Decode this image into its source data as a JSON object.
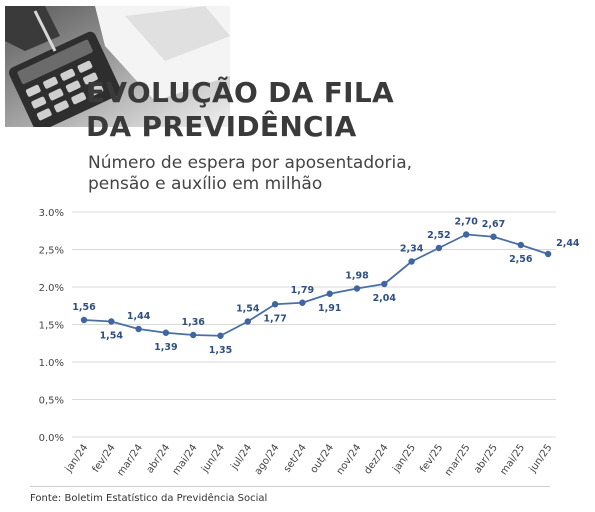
{
  "header": {
    "title_line1": "EVOLUÇÃO DA FILA",
    "title_line2": "DA PREVIDÊNCIA",
    "subtitle_line1": "Número de espera por aposentadoria,",
    "subtitle_line2": "pensão e auxílio em milhão"
  },
  "footer": {
    "source": "Fonte: Boletim Estatístico da Previdência Social"
  },
  "colors": {
    "line": "#4a6fa5",
    "point": "#3f66a0",
    "label": "#2f4f80",
    "axis_text": "#444444",
    "grid": "#d9d9d9",
    "title": "#3a3a3a"
  },
  "chart_data": {
    "type": "line",
    "title": "EVOLUÇÃO DA FILA DA PREVIDÊNCIA",
    "subtitle": "Número de espera por aposentadoria, pensão e auxílio em milhão",
    "categories": [
      "jan/24",
      "fev/24",
      "mar/24",
      "abr/24",
      "mai/24",
      "jun/24",
      "jul/24",
      "ago/24",
      "set/24",
      "out/24",
      "nov/24",
      "dez/24",
      "jan/25",
      "fev/25",
      "mar/25",
      "abr/25",
      "mai/25",
      "jun/25"
    ],
    "series": [
      {
        "values": [
          1.56,
          1.54,
          1.44,
          1.39,
          1.36,
          1.35,
          1.54,
          1.77,
          1.79,
          1.91,
          1.98,
          2.04,
          2.34,
          2.52,
          2.7,
          2.67,
          2.56,
          2.44
        ],
        "data_labels": [
          "1,56",
          "1,54",
          "1,44",
          "1,39",
          "1,36",
          "1,35",
          "1,54",
          "1,77",
          "1,79",
          "1,91",
          "1,98",
          "2,04",
          "2,34",
          "2,52",
          "2,70",
          "2,67",
          "2,56",
          "2,44"
        ],
        "label_position": [
          "above",
          "below",
          "above",
          "below",
          "above",
          "below",
          "above",
          "below",
          "above",
          "below",
          "above",
          "below",
          "above",
          "above",
          "above",
          "above",
          "below",
          "right"
        ]
      }
    ],
    "yticks": [
      {
        "value": 0.0,
        "label": "0.0%"
      },
      {
        "value": 0.5,
        "label": "0,5%"
      },
      {
        "value": 1.0,
        "label": "1.0%"
      },
      {
        "value": 1.5,
        "label": "1,5%"
      },
      {
        "value": 2.0,
        "label": "2.0%"
      },
      {
        "value": 2.5,
        "label": "2,5%"
      },
      {
        "value": 3.0,
        "label": "3.0%"
      }
    ],
    "ylim": [
      0,
      3.0
    ],
    "xlabel": "",
    "ylabel": "",
    "grid": "horizontal",
    "legend": "none"
  },
  "source_label": "Fonte: Boletim Estatístico da Previdência Social"
}
